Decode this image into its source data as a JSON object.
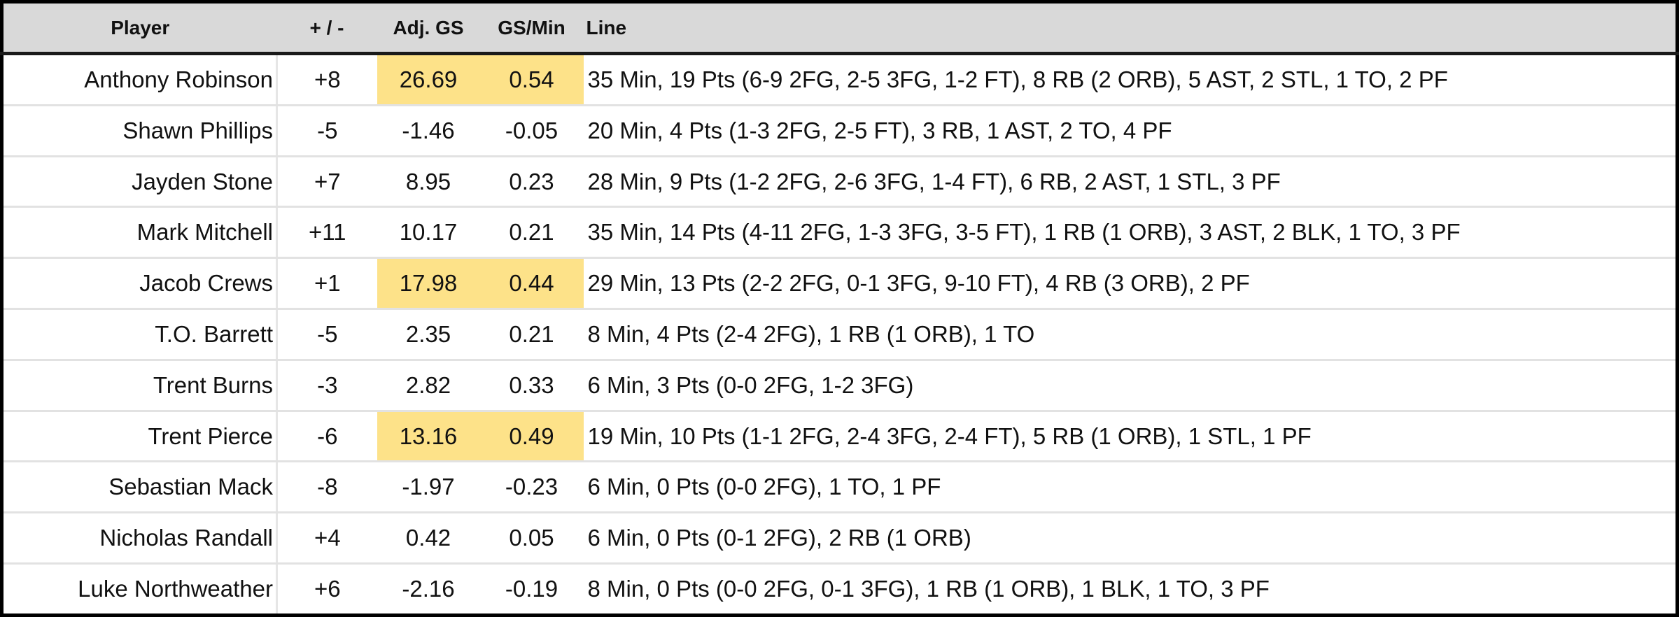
{
  "header": {
    "player": "Player",
    "plus_minus": "+ / -",
    "adj_gs": "Adj. GS",
    "gs_min": "GS/Min",
    "line": "Line"
  },
  "highlight_color": "#fde289",
  "rows": [
    {
      "player": "Anthony Robinson",
      "plus_minus": "+8",
      "adj_gs": "26.69",
      "gs_min": "0.54",
      "line": "35 Min, 19 Pts (6-9 2FG, 2-5 3FG, 1-2 FT), 8 RB (2 ORB), 5 AST, 2 STL, 1 TO, 2 PF",
      "highlighted": true
    },
    {
      "player": "Shawn Phillips",
      "plus_minus": "-5",
      "adj_gs": "-1.46",
      "gs_min": "-0.05",
      "line": "20 Min, 4 Pts (1-3 2FG, 2-5 FT), 3 RB, 1 AST, 2 TO, 4 PF",
      "highlighted": false
    },
    {
      "player": "Jayden Stone",
      "plus_minus": "+7",
      "adj_gs": "8.95",
      "gs_min": "0.23",
      "line": "28 Min, 9 Pts (1-2 2FG, 2-6 3FG, 1-4 FT), 6 RB, 2 AST, 1 STL, 3 PF",
      "highlighted": false
    },
    {
      "player": "Mark Mitchell",
      "plus_minus": "+11",
      "adj_gs": "10.17",
      "gs_min": "0.21",
      "line": "35 Min, 14 Pts (4-11 2FG, 1-3 3FG, 3-5 FT), 1 RB (1 ORB), 3 AST, 2 BLK, 1 TO, 3 PF",
      "highlighted": false
    },
    {
      "player": "Jacob Crews",
      "plus_minus": "+1",
      "adj_gs": "17.98",
      "gs_min": "0.44",
      "line": "29 Min, 13 Pts (2-2 2FG, 0-1 3FG, 9-10 FT), 4 RB (3 ORB), 2 PF",
      "highlighted": true
    },
    {
      "player": "T.O. Barrett",
      "plus_minus": "-5",
      "adj_gs": "2.35",
      "gs_min": "0.21",
      "line": "8 Min, 4 Pts (2-4 2FG), 1 RB (1 ORB), 1 TO",
      "highlighted": false
    },
    {
      "player": "Trent Burns",
      "plus_minus": "-3",
      "adj_gs": "2.82",
      "gs_min": "0.33",
      "line": "6 Min, 3 Pts (0-0 2FG, 1-2 3FG)",
      "highlighted": false
    },
    {
      "player": "Trent Pierce",
      "plus_minus": "-6",
      "adj_gs": "13.16",
      "gs_min": "0.49",
      "line": "19 Min, 10 Pts (1-1 2FG, 2-4 3FG, 2-4 FT), 5 RB (1 ORB), 1 STL, 1 PF",
      "highlighted": true
    },
    {
      "player": "Sebastian Mack",
      "plus_minus": "-8",
      "adj_gs": "-1.97",
      "gs_min": "-0.23",
      "line": "6 Min, 0 Pts (0-0 2FG), 1 TO, 1 PF",
      "highlighted": false
    },
    {
      "player": "Nicholas Randall",
      "plus_minus": "+4",
      "adj_gs": "0.42",
      "gs_min": "0.05",
      "line": "6 Min, 0 Pts (0-1 2FG), 2 RB (1 ORB)",
      "highlighted": false
    },
    {
      "player": "Luke Northweather",
      "plus_minus": "+6",
      "adj_gs": "-2.16",
      "gs_min": "-0.19",
      "line": "8 Min, 0 Pts (0-0 2FG, 0-1 3FG), 1 RB (1 ORB), 1 BLK, 1 TO, 3 PF",
      "highlighted": false
    }
  ]
}
